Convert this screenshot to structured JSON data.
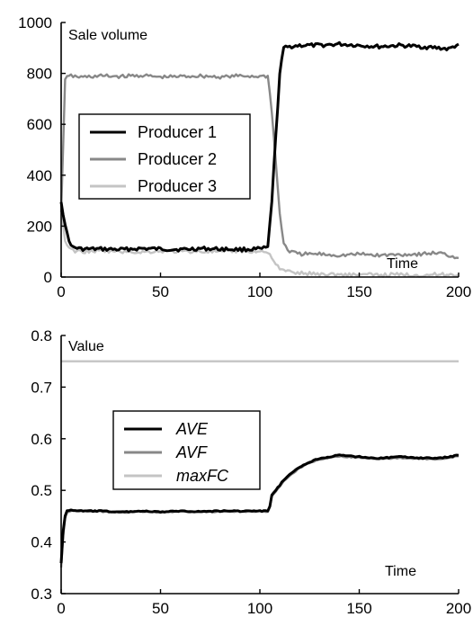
{
  "chart_data": [
    {
      "type": "line",
      "ylabel": "Sale volume",
      "xlabel": "Time",
      "xlim": [
        0,
        200
      ],
      "ylim": [
        0,
        1000
      ],
      "xticks": [
        "0",
        "50",
        "100",
        "150",
        "200"
      ],
      "yticks": [
        "0",
        "200",
        "400",
        "600",
        "800",
        "1000"
      ],
      "legend": "center-left",
      "grid": false,
      "series": [
        {
          "name": "Producer 1",
          "color": "#000000",
          "x": [
            0,
            2,
            5,
            10,
            20,
            30,
            40,
            50,
            60,
            70,
            80,
            90,
            100,
            104,
            106,
            108,
            110,
            112,
            115,
            120,
            130,
            140,
            150,
            160,
            170,
            180,
            190,
            195,
            200
          ],
          "y": [
            300,
            200,
            120,
            110,
            110,
            108,
            112,
            110,
            108,
            112,
            110,
            108,
            110,
            115,
            300,
            550,
            800,
            900,
            905,
            910,
            910,
            915,
            910,
            905,
            910,
            905,
            900,
            895,
            915
          ]
        },
        {
          "name": "Producer 2",
          "color": "#888888",
          "x": [
            0,
            2,
            5,
            10,
            20,
            30,
            40,
            50,
            60,
            70,
            80,
            90,
            100,
            104,
            106,
            108,
            110,
            112,
            115,
            120,
            130,
            140,
            150,
            160,
            170,
            180,
            190,
            200
          ],
          "y": [
            250,
            780,
            790,
            785,
            790,
            788,
            792,
            785,
            788,
            790,
            786,
            790,
            788,
            790,
            650,
            450,
            250,
            130,
            100,
            90,
            90,
            85,
            90,
            85,
            88,
            90,
            95,
            75
          ]
        },
        {
          "name": "Producer 3",
          "color": "#c4c4c4",
          "x": [
            0,
            2,
            5,
            10,
            20,
            30,
            40,
            50,
            60,
            70,
            80,
            90,
            100,
            104,
            106,
            108,
            110,
            115,
            120,
            130,
            140,
            150,
            160,
            170,
            180,
            190,
            200
          ],
          "y": [
            280,
            140,
            105,
            100,
            102,
            100,
            98,
            102,
            100,
            101,
            99,
            102,
            100,
            98,
            80,
            50,
            30,
            20,
            15,
            12,
            10,
            10,
            8,
            10,
            8,
            10,
            8
          ]
        }
      ]
    },
    {
      "type": "line",
      "ylabel": "Value",
      "xlabel": "Time",
      "xlim": [
        0,
        200
      ],
      "ylim": [
        0.3,
        0.8
      ],
      "xticks": [
        "0",
        "50",
        "100",
        "150",
        "200"
      ],
      "yticks": [
        "0.3",
        "0.4",
        "0.5",
        "0.6",
        "0.7",
        "0.8"
      ],
      "legend": "center-left",
      "grid": false,
      "series": [
        {
          "name": "AVE",
          "color": "#000000",
          "x": [
            0,
            1,
            2,
            3,
            5,
            10,
            20,
            30,
            40,
            50,
            60,
            70,
            80,
            90,
            100,
            104,
            105,
            106,
            108,
            110,
            112,
            115,
            120,
            125,
            130,
            135,
            140,
            150,
            160,
            170,
            180,
            190,
            200
          ],
          "y": [
            0.36,
            0.42,
            0.45,
            0.46,
            0.462,
            0.46,
            0.46,
            0.458,
            0.46,
            0.458,
            0.46,
            0.459,
            0.46,
            0.46,
            0.46,
            0.46,
            0.47,
            0.49,
            0.5,
            0.51,
            0.52,
            0.53,
            0.545,
            0.555,
            0.562,
            0.565,
            0.568,
            0.565,
            0.562,
            0.565,
            0.563,
            0.562,
            0.568
          ]
        },
        {
          "name": "AVF",
          "color": "#888888",
          "x": [
            0,
            1,
            2,
            3,
            5,
            10,
            20,
            30,
            40,
            50,
            60,
            70,
            80,
            90,
            100,
            104,
            105,
            106,
            108,
            110,
            112,
            115,
            120,
            125,
            130,
            135,
            140,
            150,
            160,
            170,
            180,
            190,
            200
          ],
          "y": [
            0.35,
            0.41,
            0.445,
            0.458,
            0.46,
            0.46,
            0.459,
            0.457,
            0.459,
            0.457,
            0.459,
            0.458,
            0.459,
            0.459,
            0.459,
            0.459,
            0.469,
            0.488,
            0.498,
            0.508,
            0.518,
            0.528,
            0.543,
            0.553,
            0.56,
            0.563,
            0.566,
            0.563,
            0.56,
            0.563,
            0.561,
            0.56,
            0.566
          ]
        },
        {
          "name": "maxFC",
          "color": "#c4c4c4",
          "x": [
            0,
            200
          ],
          "y": [
            0.75,
            0.75
          ]
        }
      ]
    }
  ]
}
